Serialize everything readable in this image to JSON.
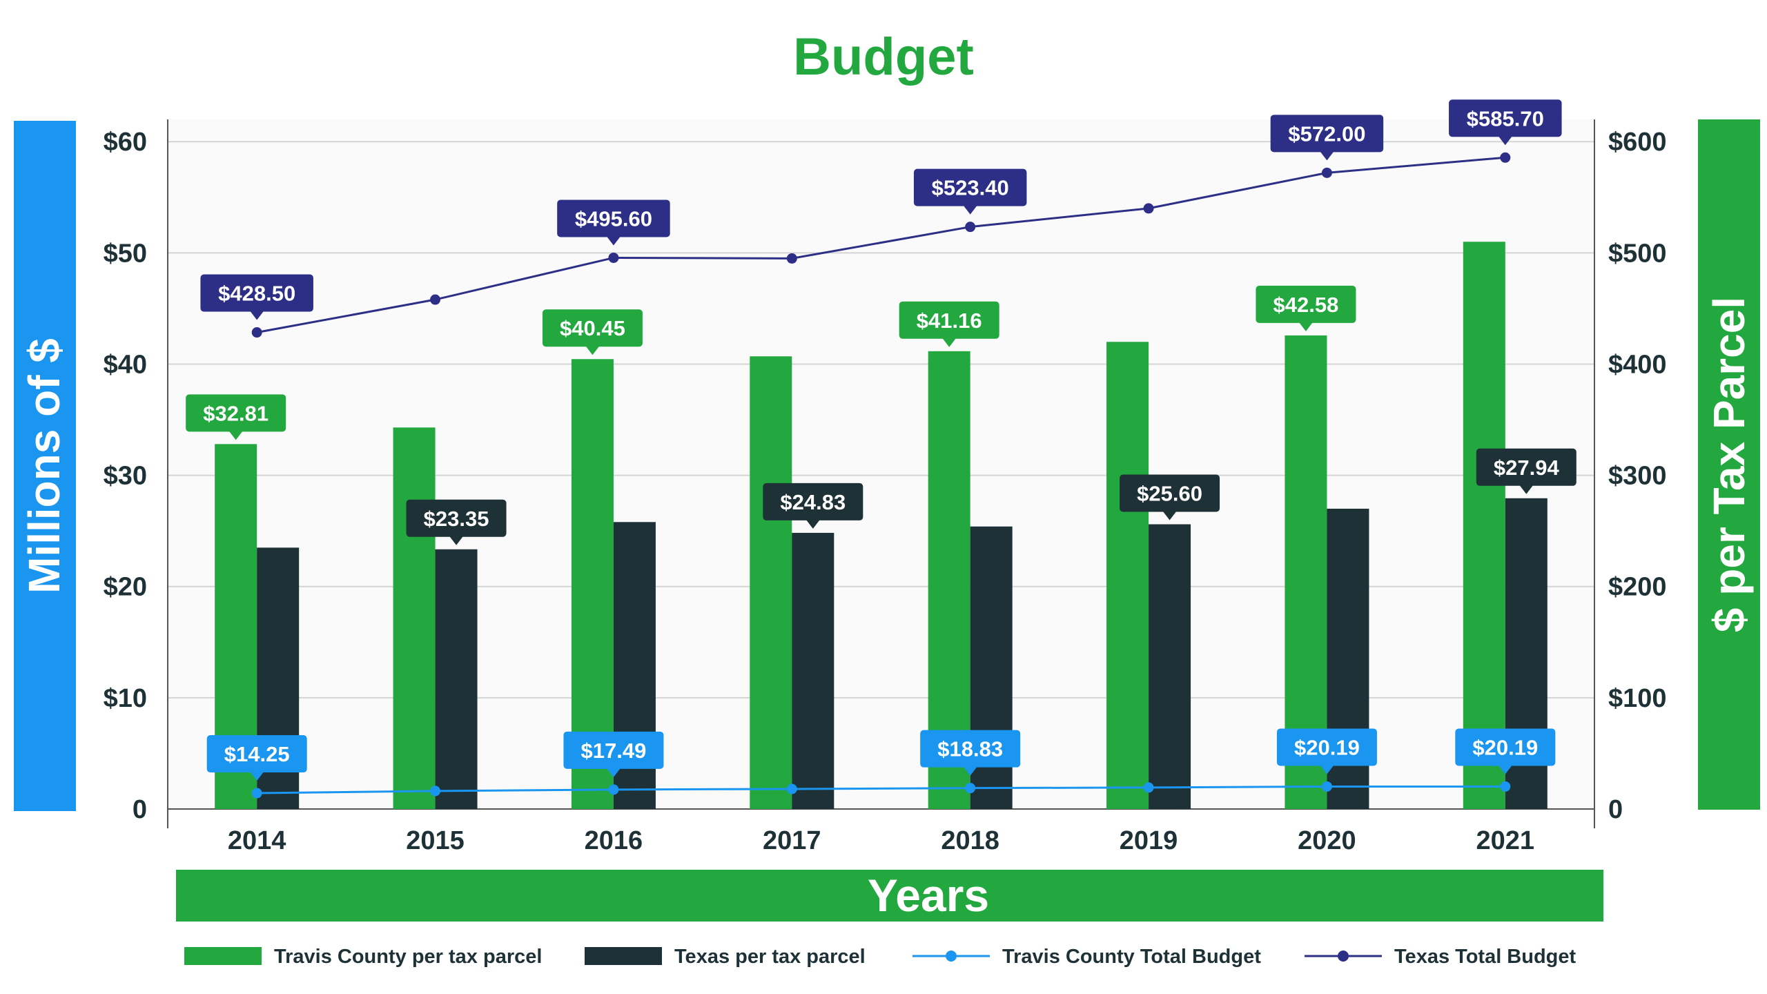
{
  "chart_data": {
    "type": "bar",
    "title": "Budget",
    "xlabel": "Years",
    "ylabel_left": "Millions of $",
    "ylabel_right": "$ per Tax Parcel",
    "categories": [
      "2014",
      "2015",
      "2016",
      "2017",
      "2018",
      "2019",
      "2020",
      "2021"
    ],
    "left_axis": {
      "range": [
        0,
        62
      ],
      "ticks": [
        0,
        10,
        20,
        30,
        40,
        50,
        60
      ],
      "tick_labels": [
        "0",
        "$10",
        "$20",
        "$30",
        "$40",
        "$50",
        "$60"
      ]
    },
    "right_axis": {
      "range": [
        0,
        620
      ],
      "ticks": [
        0,
        100,
        200,
        300,
        400,
        500,
        600
      ],
      "tick_labels": [
        "0",
        "$100",
        "$200",
        "$300",
        "$400",
        "$500",
        "$600"
      ]
    },
    "grid": true,
    "legend_position": "bottom",
    "series": [
      {
        "name": "Travis County per tax parcel",
        "kind": "bar",
        "axis": "left",
        "color": "#22a83e",
        "values": [
          32.81,
          34.3,
          40.45,
          40.7,
          41.16,
          42.0,
          42.58,
          51.0
        ],
        "labels": [
          "$32.81",
          "",
          "$40.45",
          "",
          "$41.16",
          "",
          "$42.58",
          ""
        ]
      },
      {
        "name": "Texas per tax parcel",
        "kind": "bar",
        "axis": "left",
        "color": "#1e3137",
        "values": [
          23.5,
          23.35,
          25.8,
          24.83,
          25.4,
          25.6,
          27.0,
          27.94
        ],
        "labels": [
          "",
          "$23.35",
          "",
          "$24.83",
          "",
          "$25.60",
          "",
          "$27.94"
        ]
      },
      {
        "name": "Travis County Total Budget",
        "kind": "line",
        "axis": "right",
        "color": "#1a96f0",
        "values": [
          14.25,
          16.2,
          17.49,
          18.0,
          18.83,
          19.3,
          20.19,
          20.19
        ],
        "labels": [
          "$14.25",
          "",
          "$17.49",
          "",
          "$18.83",
          "",
          "$20.19",
          "$20.19"
        ]
      },
      {
        "name": "Texas Total Budget",
        "kind": "line",
        "axis": "right",
        "color": "#2d2f87",
        "values": [
          428.5,
          458.0,
          495.6,
          495.0,
          523.4,
          540.0,
          572.0,
          585.7
        ],
        "labels": [
          "$428.50",
          "",
          "$495.60",
          "",
          "$523.40",
          "",
          "$572.00",
          "$585.70"
        ]
      }
    ]
  },
  "colors": {
    "title": "#22a83e",
    "left_band": "#1a96f0",
    "right_band": "#22a83e",
    "x_band": "#22a83e",
    "plot_bg": "#fafafa",
    "grid": "#d4d4d4",
    "axis_line": "#555555",
    "tick_text": "#1e3137"
  }
}
